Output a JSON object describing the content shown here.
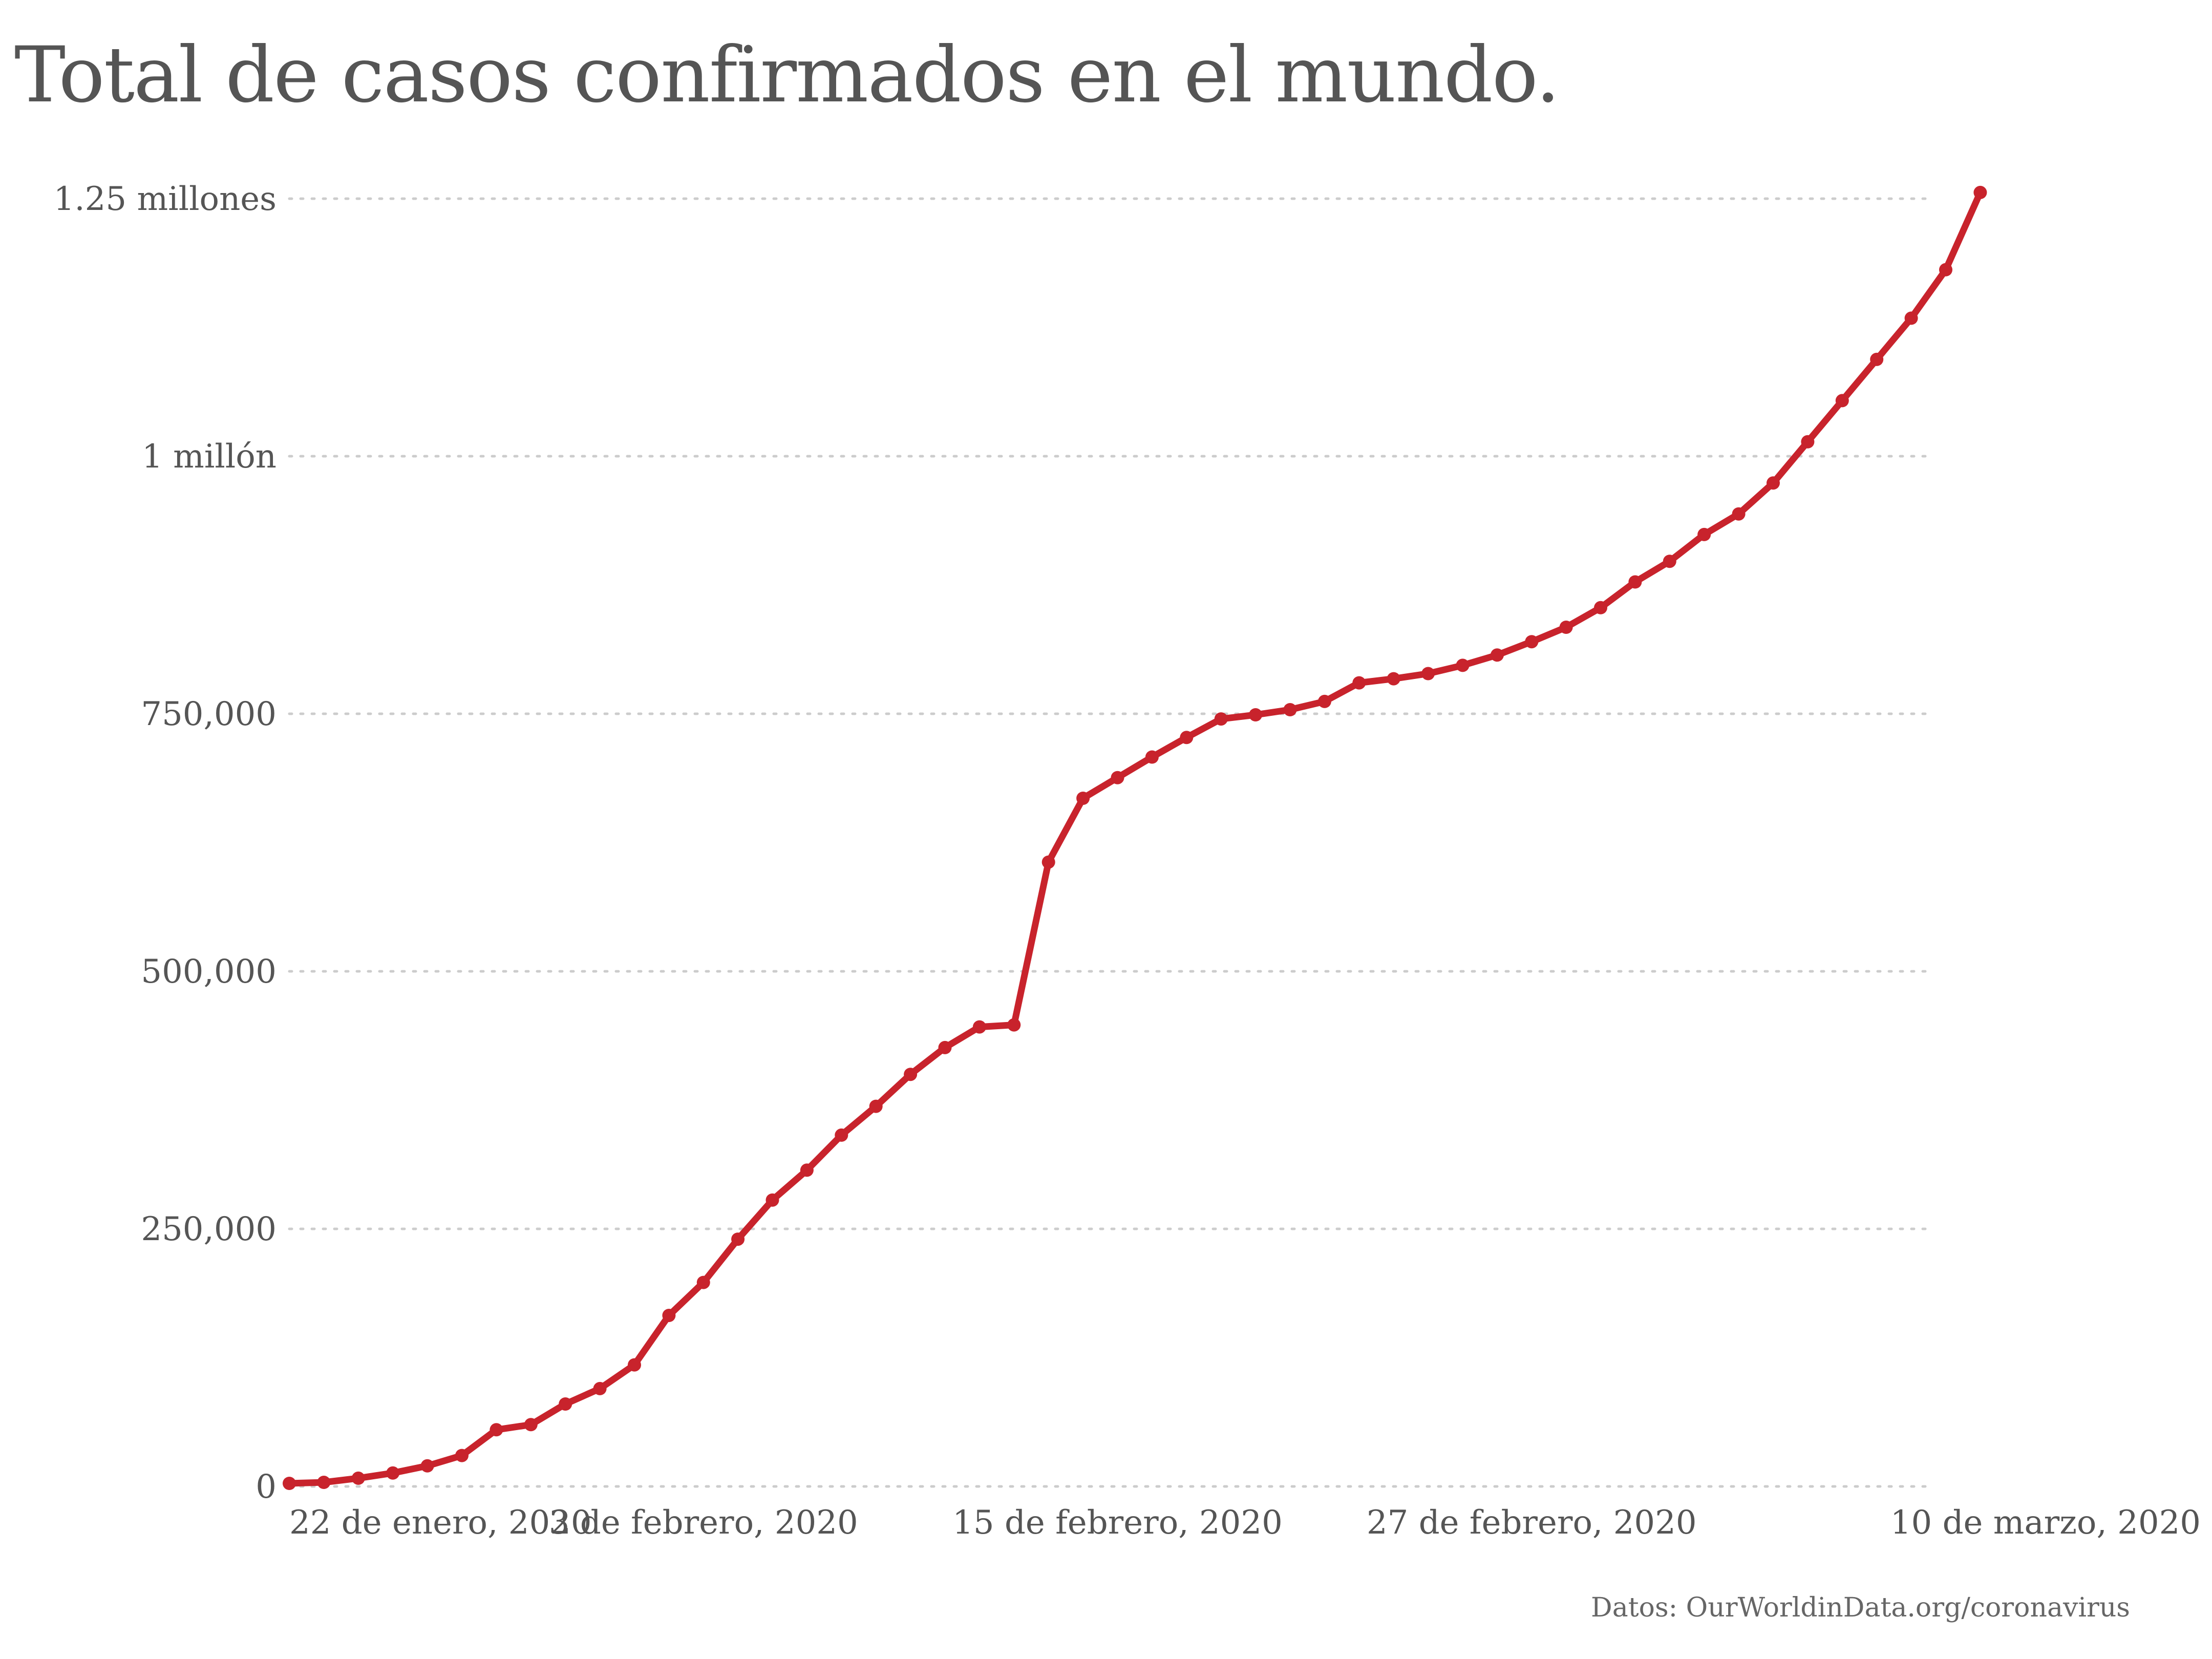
{
  "title": "Total de casos confirmados en el mundo.",
  "source": "Datos: OurWorldinData.org/coronavirus",
  "colors": {
    "line": "#c8232c",
    "grid": "#cccccc",
    "text": "#555555"
  },
  "chart_data": {
    "type": "line",
    "title": "Total de casos confirmados en el mundo.",
    "xlabel": "",
    "ylabel": "",
    "grid": true,
    "ylim": [
      0,
      1250000
    ],
    "xlim": [
      "2020-01-22",
      "2020-03-10"
    ],
    "y_ticks": [
      {
        "value": 0,
        "label": "0"
      },
      {
        "value": 250000,
        "label": "250,000"
      },
      {
        "value": 500000,
        "label": "500,000"
      },
      {
        "value": 750000,
        "label": "750,000"
      },
      {
        "value": 1000000,
        "label": "1 millón"
      },
      {
        "value": 1250000,
        "label": "1.25 millones"
      }
    ],
    "x_ticks": [
      {
        "value": "2020-01-22",
        "label": "22 de enero, 2020"
      },
      {
        "value": "2020-02-03",
        "label": "3 de febrero, 2020"
      },
      {
        "value": "2020-02-15",
        "label": "15 de febrero, 2020"
      },
      {
        "value": "2020-02-27",
        "label": "27 de febrero, 2020"
      },
      {
        "value": "2020-03-10",
        "label": "10 de marzo, 2020"
      }
    ],
    "series": [
      {
        "x": [
          "2020-01-22",
          "2020-01-23",
          "2020-01-24",
          "2020-01-25",
          "2020-01-26",
          "2020-01-27",
          "2020-01-28",
          "2020-01-29",
          "2020-01-30",
          "2020-01-31",
          "2020-02-01",
          "2020-02-02",
          "2020-02-03",
          "2020-02-04",
          "2020-02-05",
          "2020-02-06",
          "2020-02-07",
          "2020-02-08",
          "2020-02-09",
          "2020-02-10",
          "2020-02-11",
          "2020-02-12",
          "2020-02-13",
          "2020-02-14",
          "2020-02-15",
          "2020-02-16",
          "2020-02-17",
          "2020-02-18",
          "2020-02-19",
          "2020-02-20",
          "2020-02-21",
          "2020-02-22",
          "2020-02-23",
          "2020-02-24",
          "2020-02-25",
          "2020-02-26",
          "2020-02-27",
          "2020-02-28",
          "2020-02-29",
          "2020-03-01",
          "2020-03-02",
          "2020-03-03",
          "2020-03-04",
          "2020-03-05",
          "2020-03-06",
          "2020-03-07",
          "2020-03-08",
          "2020-03-09",
          "2020-03-10",
          "2020-03-11"
        ],
        "values": [
          3000,
          4000,
          8000,
          13000,
          20000,
          30000,
          55000,
          60000,
          80000,
          95000,
          118000,
          166000,
          198000,
          240000,
          278000,
          307000,
          341000,
          369000,
          400000,
          426000,
          446000,
          448000,
          606000,
          668000,
          688000,
          708000,
          727000,
          745000,
          749000,
          754000,
          762000,
          780000,
          784000,
          789000,
          797000,
          807000,
          820000,
          834000,
          853000,
          878000,
          898000,
          924000,
          944000,
          974000,
          1014000,
          1054000,
          1094000,
          1134000,
          1181000,
          1256000
        ]
      }
    ]
  }
}
